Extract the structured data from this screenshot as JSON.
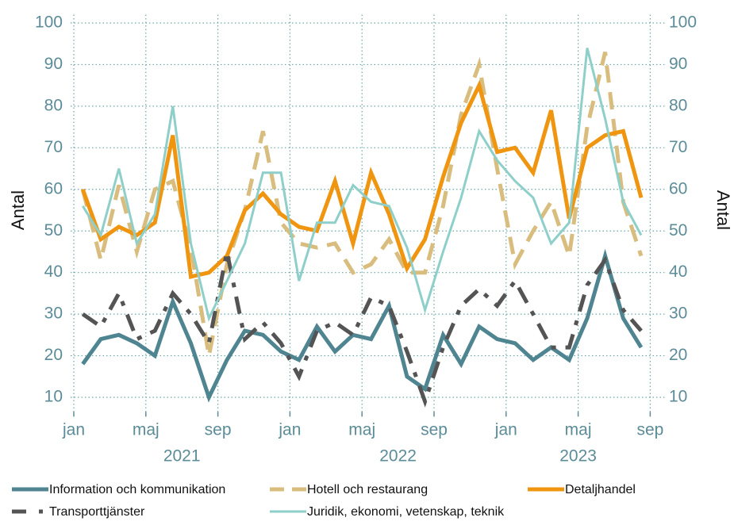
{
  "chart_data": {
    "type": "line",
    "ylabel": "Antal",
    "x": [
      "2021-01",
      "2021-02",
      "2021-03",
      "2021-04",
      "2021-05",
      "2021-06",
      "2021-07",
      "2021-08",
      "2021-09",
      "2021-10",
      "2021-11",
      "2021-12",
      "2022-01",
      "2022-02",
      "2022-03",
      "2022-04",
      "2022-05",
      "2022-06",
      "2022-07",
      "2022-08",
      "2022-09",
      "2022-10",
      "2022-11",
      "2022-12",
      "2023-01",
      "2023-02",
      "2023-03",
      "2023-04",
      "2023-05",
      "2023-06",
      "2023-07",
      "2023-08"
    ],
    "xticks": [
      {
        "value": "2021-01",
        "label": "jan"
      },
      {
        "value": "2021-05",
        "label": "maj"
      },
      {
        "value": "2021-09",
        "label": "sep"
      },
      {
        "value": "2022-01",
        "label": "jan"
      },
      {
        "value": "2022-05",
        "label": "maj"
      },
      {
        "value": "2022-09",
        "label": "sep"
      },
      {
        "value": "2023-01",
        "label": "jan"
      },
      {
        "value": "2023-05",
        "label": "maj"
      },
      {
        "value": "2023-09",
        "label": "sep"
      }
    ],
    "xgroups": [
      "2021",
      "2022",
      "2023"
    ],
    "ylim": [
      6.5,
      102
    ],
    "yticks": [
      10,
      20,
      30,
      40,
      50,
      60,
      70,
      80,
      90,
      100
    ],
    "grid": true,
    "legend": "bottom",
    "series": [
      {
        "name": "Information och kommunikation",
        "color": "#4f8591",
        "linestyle": "solid",
        "linewidth": 5,
        "values": [
          18,
          24,
          25,
          23,
          20,
          33,
          23,
          10,
          19,
          26,
          25,
          21,
          19,
          27,
          21,
          25,
          24,
          32,
          15,
          12,
          25,
          18,
          27,
          24,
          23,
          19,
          22,
          19,
          29,
          44,
          29,
          22
        ]
      },
      {
        "name": "Hotell och restaurang",
        "color": "#d8bd7e",
        "linestyle": "dash",
        "linewidth": 5,
        "values": [
          60,
          43,
          61,
          45,
          60,
          62,
          46,
          20,
          42,
          55,
          74,
          52,
          47,
          46,
          47,
          40,
          42,
          48,
          40,
          40,
          56,
          78,
          90,
          65,
          42,
          50,
          57,
          44,
          75,
          93,
          57,
          44
        ]
      },
      {
        "name": "Detaljhandel",
        "color": "#ef9510",
        "linestyle": "solid",
        "linewidth": 5,
        "values": [
          60,
          48,
          51,
          49,
          52,
          73,
          39,
          40,
          44,
          55,
          59,
          54,
          51,
          50,
          62,
          47,
          64,
          54,
          41,
          48,
          63,
          76,
          85,
          69,
          70,
          64,
          79,
          53,
          70,
          73,
          74,
          58
        ]
      },
      {
        "name": "Transporttjänster",
        "color": "#545454",
        "linestyle": "dashdot",
        "linewidth": 5,
        "values": [
          30,
          27,
          35,
          24,
          26,
          35,
          30,
          23,
          45,
          24,
          28,
          23,
          15,
          26,
          28,
          25,
          34,
          32,
          21,
          9,
          22,
          32,
          36,
          32,
          38,
          30,
          22,
          22,
          37,
          43,
          31,
          26
        ]
      },
      {
        "name": "Juridik, ekonomi, vetenskap, teknik",
        "color": "#8ecfca",
        "linestyle": "solid",
        "linewidth": 3,
        "values": [
          56,
          49,
          65,
          47,
          54,
          80,
          47,
          29,
          38,
          47,
          64,
          64,
          38,
          52,
          52,
          61,
          57,
          56,
          46,
          31,
          45,
          58,
          74,
          67,
          62,
          58,
          47,
          52,
          94,
          77,
          57,
          49
        ]
      }
    ]
  }
}
